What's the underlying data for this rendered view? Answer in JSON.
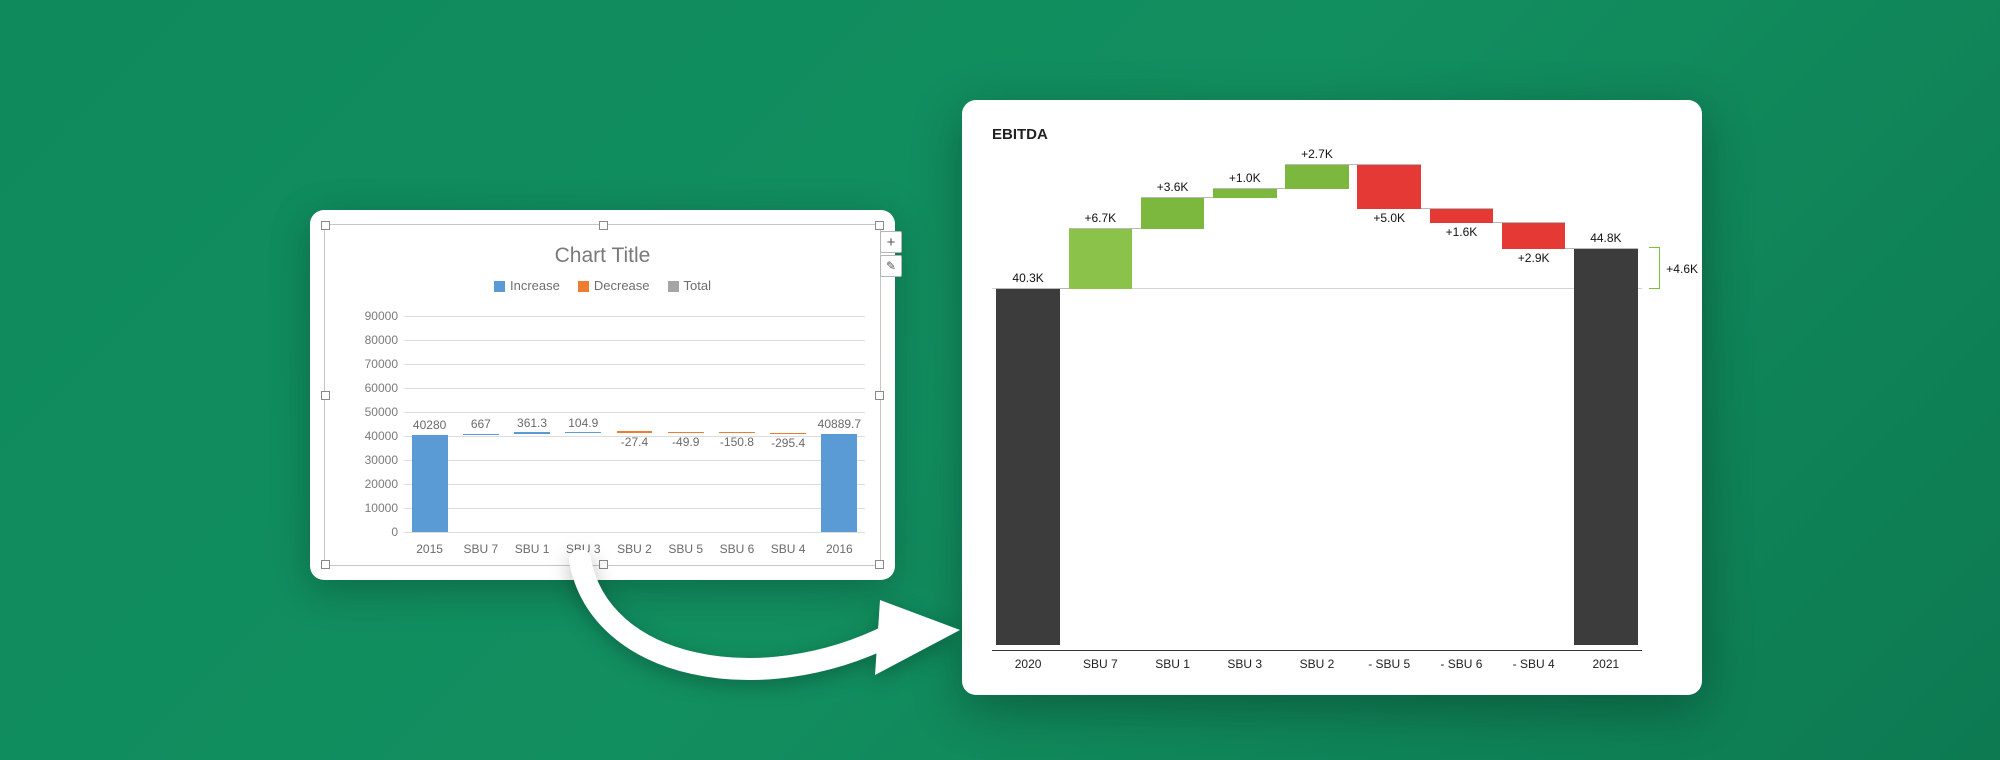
{
  "page_background_gradient": [
    "#0e8a5d",
    "#128f5f",
    "#0d7a52"
  ],
  "left_chart": {
    "type": "waterfall",
    "title": "Chart Title",
    "title_color": "#7a7a7a",
    "title_fontsize": 21,
    "legend": [
      {
        "label": "Increase",
        "color": "#5b9bd5"
      },
      {
        "label": "Decrease",
        "color": "#ed7d31"
      },
      {
        "label": "Total",
        "color": "#a5a5a5"
      }
    ],
    "y_axis": {
      "min": 0,
      "max": 90000,
      "step": 10000,
      "grid_color": "#dcdcdc",
      "label_color": "#7a7a7a",
      "label_fontsize": 12
    },
    "categories": [
      "2015",
      "SBU 7",
      "SBU 1",
      "SBU 3",
      "SBU 2",
      "SBU 5",
      "SBU 6",
      "SBU 4",
      "2016"
    ],
    "bars": [
      {
        "label": "40280",
        "value": 40280,
        "start": 0,
        "end": 40280,
        "kind": "total",
        "color": "#5b9bd5"
      },
      {
        "label": "667",
        "value": 667,
        "start": 40280,
        "end": 40947,
        "kind": "increase",
        "color": "#5b9bd5"
      },
      {
        "label": "361.3",
        "value": 361.3,
        "start": 40947,
        "end": 41308.3,
        "kind": "increase",
        "color": "#5b9bd5"
      },
      {
        "label": "104.9",
        "value": 104.9,
        "start": 41308.3,
        "end": 41413.2,
        "kind": "increase",
        "color": "#5b9bd5"
      },
      {
        "label": "-27.4",
        "value": -27.4,
        "start": 41413.2,
        "end": 41385.8,
        "kind": "decrease",
        "color": "#ed7d31"
      },
      {
        "label": "-49.9",
        "value": -49.9,
        "start": 41385.8,
        "end": 41335.9,
        "kind": "decrease",
        "color": "#ed7d31"
      },
      {
        "label": "-150.8",
        "value": -150.8,
        "start": 41335.9,
        "end": 41185.1,
        "kind": "decrease",
        "color": "#ed7d31"
      },
      {
        "label": "-295.4",
        "value": -295.4,
        "start": 41185.1,
        "end": 40889.7,
        "kind": "decrease",
        "color": "#ed7d31"
      },
      {
        "label": "40889.7",
        "value": 40889.7,
        "start": 0,
        "end": 40889.7,
        "kind": "total",
        "color": "#5b9bd5"
      }
    ],
    "selection_handles": true,
    "side_buttons": [
      {
        "icon": "+"
      },
      {
        "icon": "brush"
      }
    ]
  },
  "right_chart": {
    "type": "waterfall",
    "title": "EBITDA",
    "title_fontsize": 15,
    "title_color": "#222222",
    "y_axis": {
      "min": 0,
      "max": 54.4,
      "visible": false
    },
    "categories": [
      "2020",
      "SBU 7",
      "SBU 1",
      "SBU 3",
      "SBU 2",
      "- SBU 5",
      "- SBU 6",
      "- SBU 4",
      "2021"
    ],
    "bars": [
      {
        "label": "40.3K",
        "value": 40.3,
        "start": 0,
        "end": 40.3,
        "kind": "total",
        "color": "#3c3c3c"
      },
      {
        "label": "+6.7K",
        "value": 6.7,
        "start": 40.3,
        "end": 47.0,
        "kind": "increase",
        "color": "#8bc34a"
      },
      {
        "label": "+3.6K",
        "value": 3.6,
        "start": 47.0,
        "end": 50.6,
        "kind": "increase",
        "color": "#7db83e"
      },
      {
        "label": "+1.0K",
        "value": 1.0,
        "start": 50.6,
        "end": 51.6,
        "kind": "increase",
        "color": "#7db83e"
      },
      {
        "label": "+2.7K",
        "value": 2.7,
        "start": 51.6,
        "end": 54.3,
        "kind": "increase",
        "color": "#7db83e"
      },
      {
        "label": "+5.0K",
        "value": -5.0,
        "start": 54.3,
        "end": 49.3,
        "kind": "decrease",
        "color": "#e53935"
      },
      {
        "label": "+1.6K",
        "value": -1.6,
        "start": 49.3,
        "end": 47.7,
        "kind": "decrease",
        "color": "#e53935"
      },
      {
        "label": "+2.9K",
        "value": -2.9,
        "start": 47.7,
        "end": 44.8,
        "kind": "decrease",
        "color": "#e53935"
      },
      {
        "label": "44.8K",
        "value": 44.8,
        "start": 0,
        "end": 44.8,
        "kind": "total",
        "color": "#3c3c3c"
      }
    ],
    "baseline_guide": {
      "from_bar": 0,
      "color": "#d4d4d4"
    },
    "delta_annotation": {
      "label": "+4.6K",
      "from": 40.3,
      "to": 44.8,
      "color": "#7bbf3f",
      "label_color": "#111111"
    },
    "label_fontsize": 12
  },
  "arrow": {
    "color": "#ffffff"
  }
}
